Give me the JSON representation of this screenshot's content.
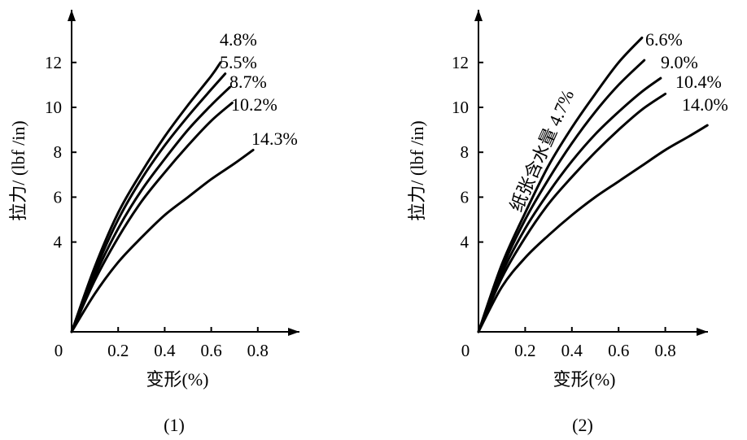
{
  "chart_data": [
    {
      "type": "line",
      "panel_label": "(1)",
      "xlabel": "变形(%)",
      "ylabel": "拉力/ (lbf /in)",
      "origin_label": "0",
      "xticks": [
        "0.2",
        "0.4",
        "0.6",
        "0.8"
      ],
      "yticks": [
        "4",
        "6",
        "8",
        "10",
        "12"
      ],
      "xlim": [
        0,
        0.95
      ],
      "ylim": [
        0,
        14
      ],
      "series": [
        {
          "name": "4.8%",
          "x": [
            0,
            0.1,
            0.2,
            0.3,
            0.4,
            0.5,
            0.6,
            0.64
          ],
          "y": [
            0,
            2.9,
            5.3,
            7.1,
            8.7,
            10.1,
            11.4,
            12.0
          ]
        },
        {
          "name": "5.5%",
          "x": [
            0,
            0.1,
            0.2,
            0.3,
            0.4,
            0.5,
            0.6,
            0.66
          ],
          "y": [
            0,
            2.7,
            5.0,
            6.8,
            8.3,
            9.6,
            10.8,
            11.5
          ]
        },
        {
          "name": "8.7%",
          "x": [
            0,
            0.1,
            0.2,
            0.3,
            0.4,
            0.5,
            0.6,
            0.68
          ],
          "y": [
            0,
            2.5,
            4.6,
            6.3,
            7.7,
            9.0,
            10.1,
            10.9
          ]
        },
        {
          "name": "10.2%",
          "x": [
            0,
            0.1,
            0.2,
            0.3,
            0.4,
            0.5,
            0.6,
            0.69
          ],
          "y": [
            0,
            2.3,
            4.2,
            5.8,
            7.1,
            8.3,
            9.4,
            10.2
          ]
        },
        {
          "name": "14.3%",
          "x": [
            0,
            0.1,
            0.2,
            0.3,
            0.4,
            0.5,
            0.6,
            0.7,
            0.78
          ],
          "y": [
            0,
            1.7,
            3.1,
            4.2,
            5.2,
            6.0,
            6.8,
            7.5,
            8.1
          ]
        }
      ]
    },
    {
      "type": "line",
      "panel_label": "(2)",
      "xlabel": "变形(%)",
      "ylabel": "拉力/ (lbf /in)",
      "origin_label": "0",
      "annotation": "纸张含水量 4.7%",
      "xticks": [
        "0.2",
        "0.4",
        "0.6",
        "0.8"
      ],
      "yticks": [
        "4",
        "6",
        "8",
        "10",
        "12"
      ],
      "xlim": [
        0,
        1.0
      ],
      "ylim": [
        0,
        14
      ],
      "series": [
        {
          "name": "4.7%",
          "x": [
            0,
            0.1,
            0.2,
            0.3,
            0.4,
            0.5,
            0.6,
            0.7
          ],
          "y": [
            0,
            3.0,
            5.3,
            7.4,
            9.1,
            10.6,
            12.0,
            13.1
          ]
        },
        {
          "name": "6.6%",
          "x": [
            0,
            0.1,
            0.2,
            0.3,
            0.4,
            0.5,
            0.6,
            0.71
          ],
          "y": [
            0,
            2.8,
            5.0,
            6.8,
            8.4,
            9.8,
            11.0,
            12.1
          ]
        },
        {
          "name": "9.0%",
          "x": [
            0,
            0.1,
            0.2,
            0.3,
            0.4,
            0.5,
            0.6,
            0.7,
            0.78
          ],
          "y": [
            0,
            2.6,
            4.6,
            6.2,
            7.6,
            8.8,
            9.8,
            10.7,
            11.3
          ]
        },
        {
          "name": "10.4%",
          "x": [
            0,
            0.1,
            0.2,
            0.3,
            0.4,
            0.5,
            0.6,
            0.7,
            0.8
          ],
          "y": [
            0,
            2.4,
            4.2,
            5.7,
            6.9,
            8.0,
            9.0,
            9.9,
            10.6
          ]
        },
        {
          "name": "14.0%",
          "x": [
            0,
            0.1,
            0.2,
            0.3,
            0.4,
            0.5,
            0.6,
            0.7,
            0.8,
            0.9,
            0.98
          ],
          "y": [
            0,
            2.0,
            3.3,
            4.3,
            5.2,
            6.0,
            6.7,
            7.4,
            8.1,
            8.7,
            9.2
          ]
        }
      ]
    }
  ]
}
